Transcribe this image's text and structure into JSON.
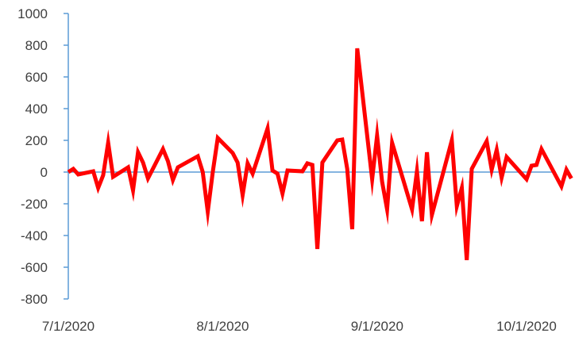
{
  "chart_data": {
    "type": "line",
    "title": "",
    "xlabel": "",
    "ylabel": "",
    "ylim": [
      -800,
      1000
    ],
    "yticks": [
      "1000",
      "800",
      "600",
      "400",
      "200",
      "0",
      "-200",
      "-400",
      "-600",
      "-800"
    ],
    "xticks": [
      {
        "label": "7/1/2020",
        "date": "2020-07-01"
      },
      {
        "label": "8/1/2020",
        "date": "2020-08-01"
      },
      {
        "label": "9/1/2020",
        "date": "2020-09-01"
      },
      {
        "label": "10/1/2020",
        "date": "2020-10-01"
      }
    ],
    "grid": false,
    "legend": "none",
    "series": [
      {
        "color": "#ff0000",
        "points": [
          [
            "2020-07-01",
            0
          ],
          [
            "2020-07-02",
            20
          ],
          [
            "2020-07-03",
            -15
          ],
          [
            "2020-07-06",
            5
          ],
          [
            "2020-07-07",
            -100
          ],
          [
            "2020-07-08",
            -20
          ],
          [
            "2020-07-09",
            185
          ],
          [
            "2020-07-10",
            -30
          ],
          [
            "2020-07-13",
            30
          ],
          [
            "2020-07-14",
            -115
          ],
          [
            "2020-07-15",
            125
          ],
          [
            "2020-07-16",
            60
          ],
          [
            "2020-07-17",
            -40
          ],
          [
            "2020-07-20",
            145
          ],
          [
            "2020-07-21",
            70
          ],
          [
            "2020-07-22",
            -50
          ],
          [
            "2020-07-23",
            30
          ],
          [
            "2020-07-27",
            100
          ],
          [
            "2020-07-28",
            0
          ],
          [
            "2020-07-29",
            -250
          ],
          [
            "2020-07-30",
            0
          ],
          [
            "2020-07-31",
            215
          ],
          [
            "2020-08-03",
            120
          ],
          [
            "2020-08-04",
            60
          ],
          [
            "2020-08-05",
            -145
          ],
          [
            "2020-08-06",
            55
          ],
          [
            "2020-08-07",
            -10
          ],
          [
            "2020-08-10",
            275
          ],
          [
            "2020-08-11",
            10
          ],
          [
            "2020-08-12",
            -10
          ],
          [
            "2020-08-13",
            -135
          ],
          [
            "2020-08-14",
            10
          ],
          [
            "2020-08-17",
            5
          ],
          [
            "2020-08-18",
            55
          ],
          [
            "2020-08-19",
            45
          ],
          [
            "2020-08-20",
            -485
          ],
          [
            "2020-08-21",
            60
          ],
          [
            "2020-08-24",
            200
          ],
          [
            "2020-08-25",
            205
          ],
          [
            "2020-08-26",
            20
          ],
          [
            "2020-08-27",
            -360
          ],
          [
            "2020-08-28",
            780
          ],
          [
            "2020-08-31",
            -45
          ],
          [
            "2020-09-01",
            230
          ],
          [
            "2020-09-02",
            -60
          ],
          [
            "2020-09-03",
            -235
          ],
          [
            "2020-09-04",
            185
          ],
          [
            "2020-09-08",
            -235
          ],
          [
            "2020-09-09",
            5
          ],
          [
            "2020-09-10",
            -310
          ],
          [
            "2020-09-11",
            125
          ],
          [
            "2020-09-12",
            -270
          ],
          [
            "2020-09-16",
            200
          ],
          [
            "2020-09-17",
            -215
          ],
          [
            "2020-09-18",
            -100
          ],
          [
            "2020-09-19",
            -555
          ],
          [
            "2020-09-20",
            20
          ],
          [
            "2020-09-23",
            195
          ],
          [
            "2020-09-24",
            15
          ],
          [
            "2020-09-25",
            140
          ],
          [
            "2020-09-26",
            -35
          ],
          [
            "2020-09-27",
            95
          ],
          [
            "2020-10-01",
            -45
          ],
          [
            "2020-10-02",
            40
          ],
          [
            "2020-10-03",
            45
          ],
          [
            "2020-10-04",
            145
          ],
          [
            "2020-10-08",
            -90
          ],
          [
            "2020-10-09",
            15
          ],
          [
            "2020-10-10",
            -40
          ]
        ]
      }
    ]
  }
}
